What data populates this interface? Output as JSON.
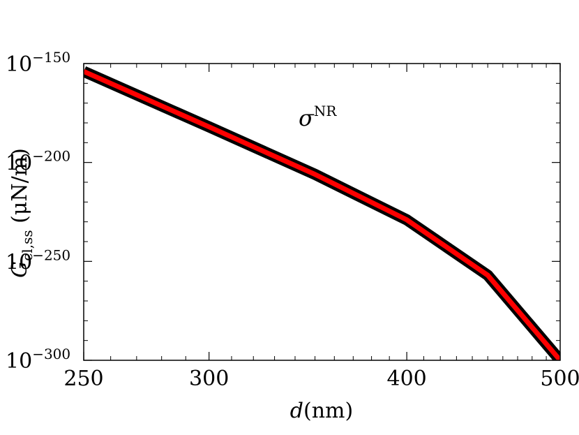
{
  "chart_data": {
    "type": "line",
    "x_scale": "log",
    "y_scale": "log",
    "xlim": [
      250,
      500
    ],
    "ylim_exponent": [
      -300,
      -150
    ],
    "x_ticks": [
      {
        "value": 250,
        "label": "250"
      },
      {
        "value": 300,
        "label": "300"
      },
      {
        "value": 400,
        "label": "400"
      },
      {
        "value": 500,
        "label": "500"
      }
    ],
    "y_ticks": [
      {
        "exponent": -150,
        "base": "10",
        "exp": "−150"
      },
      {
        "exponent": -200,
        "base": "10",
        "exp": "−200"
      },
      {
        "exponent": -250,
        "base": "10",
        "exp": "−250"
      },
      {
        "exponent": -300,
        "base": "10",
        "exp": "−300"
      }
    ],
    "xlabel": {
      "var": "d",
      "unit": "(nm)"
    },
    "ylabel": {
      "var": "G",
      "sub": "cl,ss",
      "unit": " (μN/m)"
    },
    "annotation": {
      "base": "σ",
      "sup": "NR"
    },
    "grid": false,
    "series": [
      {
        "color_outer": "#000000",
        "color_inner": "#ff0000",
        "x": [
          250,
          300,
          350,
          400,
          450,
          500
        ],
        "log10_y": [
          -154,
          -182,
          -206,
          -229,
          -257,
          -300
        ]
      }
    ]
  }
}
